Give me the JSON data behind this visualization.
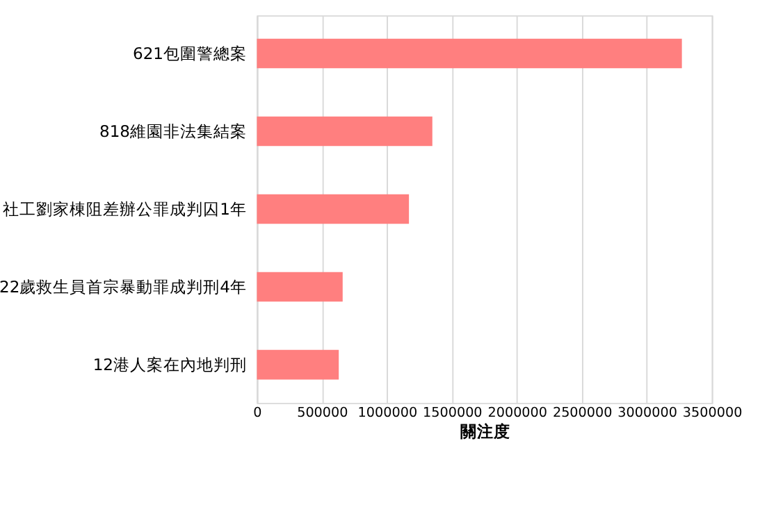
{
  "chart_data": {
    "type": "bar",
    "orientation": "horizontal",
    "xlabel": "關注度",
    "categories": [
      "621包圍警總案",
      "818維園非法集結案",
      "社工劉家棟阻差辦公罪成判囚1年",
      "22歲救生員首宗暴動罪成判刑4年",
      "12港人案在內地判刑"
    ],
    "values": [
      3270000,
      1350000,
      1170000,
      660000,
      630000
    ],
    "color": "#ff7f7f",
    "xlim": [
      0,
      3500000
    ],
    "xticks": [
      0,
      500000,
      1000000,
      1500000,
      2000000,
      2500000,
      3000000,
      3500000
    ],
    "grid": "x"
  }
}
